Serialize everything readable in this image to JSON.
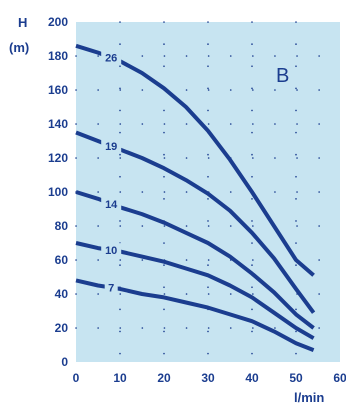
{
  "chart_data": {
    "type": "line",
    "xlabel": "l/min",
    "ylabel": "H",
    "ylabel_unit": "(m)",
    "corner_label": "B",
    "xlim": [
      0,
      60
    ],
    "ylim": [
      0,
      200
    ],
    "x_ticks": [
      0,
      10,
      20,
      30,
      40,
      50,
      60
    ],
    "y_ticks": [
      0,
      20,
      40,
      60,
      80,
      100,
      120,
      140,
      160,
      180,
      200
    ],
    "grid": true,
    "legend": "none",
    "colors": {
      "background": "#c7e4f1",
      "line": "#1b3d8f",
      "grid": "#1b3d8f"
    },
    "series": [
      {
        "name": "26",
        "x": [
          0,
          5,
          10,
          15,
          20,
          25,
          30,
          35,
          40,
          45,
          50,
          54
        ],
        "y": [
          186,
          182,
          177,
          170,
          161,
          150,
          136,
          119,
          100,
          80,
          60,
          51
        ]
      },
      {
        "name": "19",
        "x": [
          0,
          5,
          10,
          15,
          20,
          25,
          30,
          35,
          40,
          45,
          50,
          54
        ],
        "y": [
          135,
          130,
          125,
          120,
          114,
          107,
          99,
          89,
          76,
          61,
          43,
          29
        ]
      },
      {
        "name": "14",
        "x": [
          0,
          5,
          10,
          15,
          20,
          25,
          30,
          35,
          40,
          45,
          50,
          54
        ],
        "y": [
          100,
          96,
          91,
          87,
          82,
          76,
          70,
          62,
          52,
          41,
          28,
          20
        ]
      },
      {
        "name": "10",
        "x": [
          0,
          5,
          10,
          15,
          20,
          25,
          30,
          35,
          40,
          45,
          50,
          54
        ],
        "y": [
          70,
          67,
          65,
          62,
          59,
          55,
          51,
          45,
          38,
          29,
          20,
          14
        ]
      },
      {
        "name": "7",
        "x": [
          0,
          5,
          10,
          15,
          20,
          25,
          30,
          35,
          40,
          45,
          50,
          54
        ],
        "y": [
          48,
          45,
          43,
          40,
          38,
          35,
          32,
          28,
          24,
          18,
          11,
          7
        ]
      }
    ]
  }
}
